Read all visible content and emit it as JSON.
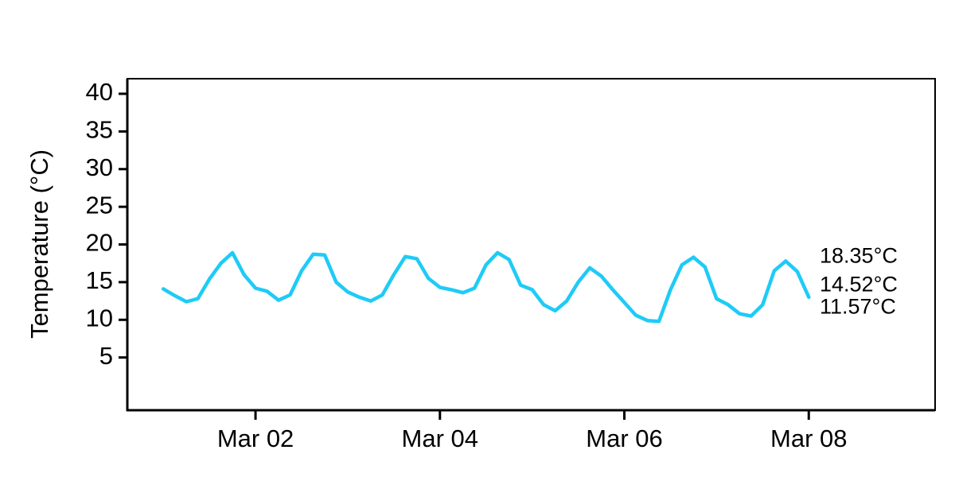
{
  "chart_data": {
    "type": "line",
    "y_label": "Temperature (°C)",
    "x": [
      1,
      1.125,
      1.25,
      1.375,
      1.5,
      1.625,
      1.75,
      1.875,
      2,
      2.125,
      2.25,
      2.375,
      2.5,
      2.625,
      2.75,
      2.875,
      3,
      3.125,
      3.25,
      3.375,
      3.5,
      3.625,
      3.75,
      3.875,
      4,
      4.125,
      4.25,
      4.375,
      4.5,
      4.625,
      4.75,
      4.875,
      5,
      5.125,
      5.25,
      5.375,
      5.5,
      5.625,
      5.75,
      5.875,
      6,
      6.125,
      6.25,
      6.375,
      6.5,
      6.625,
      6.75,
      6.875,
      7,
      7.125,
      7.25,
      7.375,
      7.5,
      7.625,
      7.75,
      7.875,
      8
    ],
    "values": [
      14.1,
      13.2,
      12.4,
      12.8,
      15.4,
      17.5,
      18.9,
      16.0,
      14.2,
      13.8,
      12.6,
      13.3,
      16.5,
      18.7,
      18.6,
      15.0,
      13.7,
      13.0,
      12.5,
      13.3,
      16.0,
      18.4,
      18.1,
      15.5,
      14.3,
      14.0,
      13.6,
      14.2,
      17.3,
      18.9,
      18.0,
      14.6,
      14.0,
      12.0,
      11.2,
      12.5,
      15.0,
      16.9,
      15.8,
      14.0,
      12.3,
      10.6,
      9.9,
      9.8,
      14.0,
      17.3,
      18.3,
      17.0,
      12.8,
      12.0,
      10.8,
      10.5,
      12.0,
      16.5,
      17.8,
      16.4,
      13.0
    ],
    "color": "#1ecbf7",
    "xlim": [
      0.61,
      9.37
    ],
    "xticks": [
      {
        "value": 2,
        "label": "Mar 02"
      },
      {
        "value": 4,
        "label": "Mar 04"
      },
      {
        "value": 6,
        "label": "Mar 06"
      },
      {
        "value": 8,
        "label": "Mar 08"
      }
    ],
    "ylim": [
      -2,
      42
    ],
    "yticks": [
      5,
      10,
      15,
      20,
      25,
      30,
      35,
      40
    ],
    "grid": false,
    "annotations": [
      {
        "text": "18.35°C",
        "y": 18.35
      },
      {
        "text": "14.52°C",
        "y": 14.52
      },
      {
        "text": "11.57°C",
        "y": 11.57
      }
    ]
  }
}
